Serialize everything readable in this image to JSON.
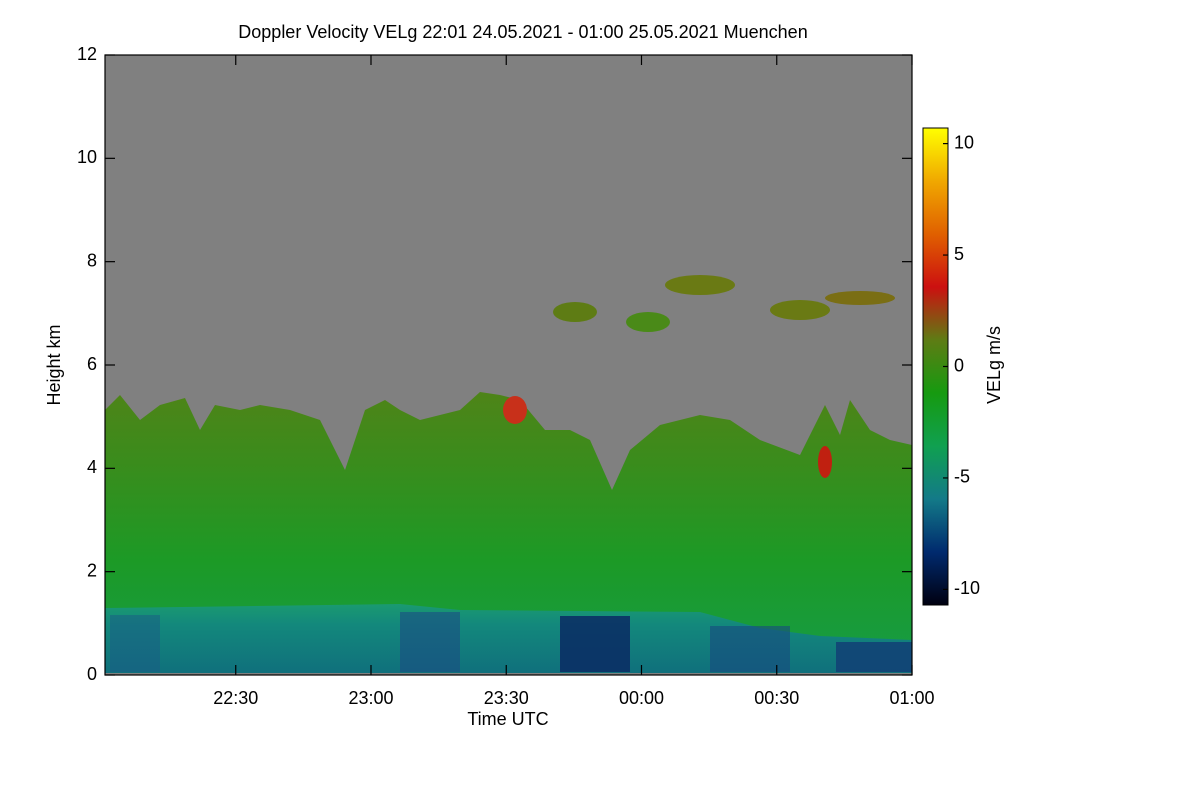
{
  "chart_data": {
    "type": "heatmap",
    "title": "Doppler Velocity VELg   22:01 24.05.2021 - 01:00 25.05.2021 Muenchen",
    "x_label": "Time UTC",
    "y_label": "Height km",
    "colorbar_label": "VELg m/s",
    "xlim": [
      1321,
      1500
    ],
    "xticks": [
      {
        "value": 1350,
        "label": "22:30"
      },
      {
        "value": 1380,
        "label": "23:00"
      },
      {
        "value": 1410,
        "label": "23:30"
      },
      {
        "value": 1440,
        "label": "00:00"
      },
      {
        "value": 1470,
        "label": "00:30"
      },
      {
        "value": 1500,
        "label": "01:00"
      }
    ],
    "ylim": [
      0,
      12
    ],
    "yticks": [
      0,
      2,
      4,
      6,
      8,
      10,
      12
    ],
    "clim": [
      -10.7,
      10.7
    ],
    "cticks": [
      -10,
      -5,
      0,
      5,
      10
    ],
    "colormap": [
      "#000010",
      "#002a6e",
      "#137a88",
      "#10a050",
      "#169a10",
      "#5e7c14",
      "#cc1010",
      "#e06000",
      "#f0a800",
      "#ffff00"
    ],
    "missing_color": "#808080"
  }
}
